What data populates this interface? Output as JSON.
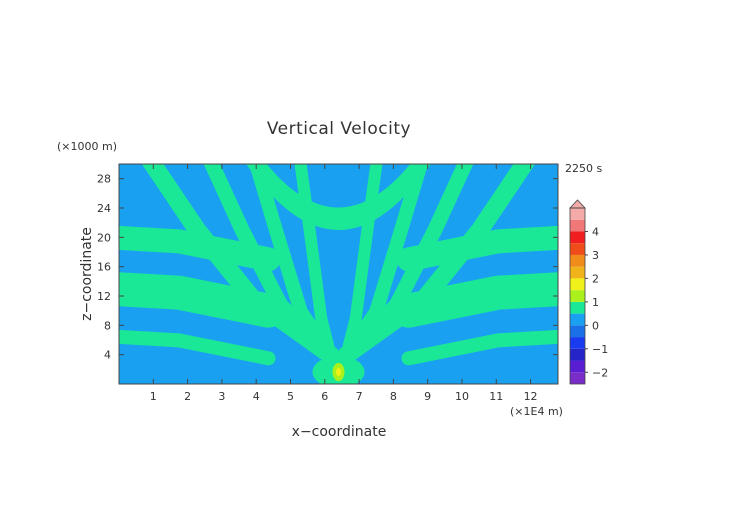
{
  "chart_data": {
    "type": "heatmap",
    "title": "Vertical Velocity",
    "xlabel": "x−coordinate",
    "ylabel": "z−coordinate",
    "x_unit": "(×1E4 m)",
    "y_unit": "(×1000 m)",
    "time_label": "2250 s",
    "x_ticks": [
      1,
      2,
      3,
      4,
      5,
      6,
      7,
      8,
      9,
      10,
      11,
      12
    ],
    "y_ticks": [
      4,
      8,
      12,
      16,
      20,
      24,
      28
    ],
    "xlim": [
      0,
      12.8
    ],
    "ylim": [
      0,
      30
    ],
    "colorbar_ticks": [
      4,
      3,
      2,
      1,
      0,
      -1,
      -2
    ],
    "colorbar_labels": [
      "4",
      "3",
      "2",
      "1",
      "0",
      "−1",
      "−2"
    ],
    "colorbar_range": [
      -2.5,
      5
    ],
    "colorbar_colors": {
      "-2.5": "#7a2cc8",
      "-2": "#5a1ed2",
      "-1.5": "#2424c8",
      "-1": "#1a3cf0",
      "-0.5": "#1a70e6",
      "0": "#1aa0f0",
      "0.5": "#1ae896",
      "1": "#aaf01a",
      "1.5": "#f0f01a",
      "2": "#f0b41a",
      "2.5": "#f08c1a",
      "3": "#f04c1a",
      "3.5": "#f01e1e",
      "4": "#f07878",
      "4.5": "#f5aaaa"
    },
    "field_colors": {
      "negative": "#1aa0f0",
      "positive": "#1ae896",
      "strong_positive": "#aaf01a",
      "peak": "#f0f01a"
    },
    "source_x": 6.4,
    "grid": false
  }
}
